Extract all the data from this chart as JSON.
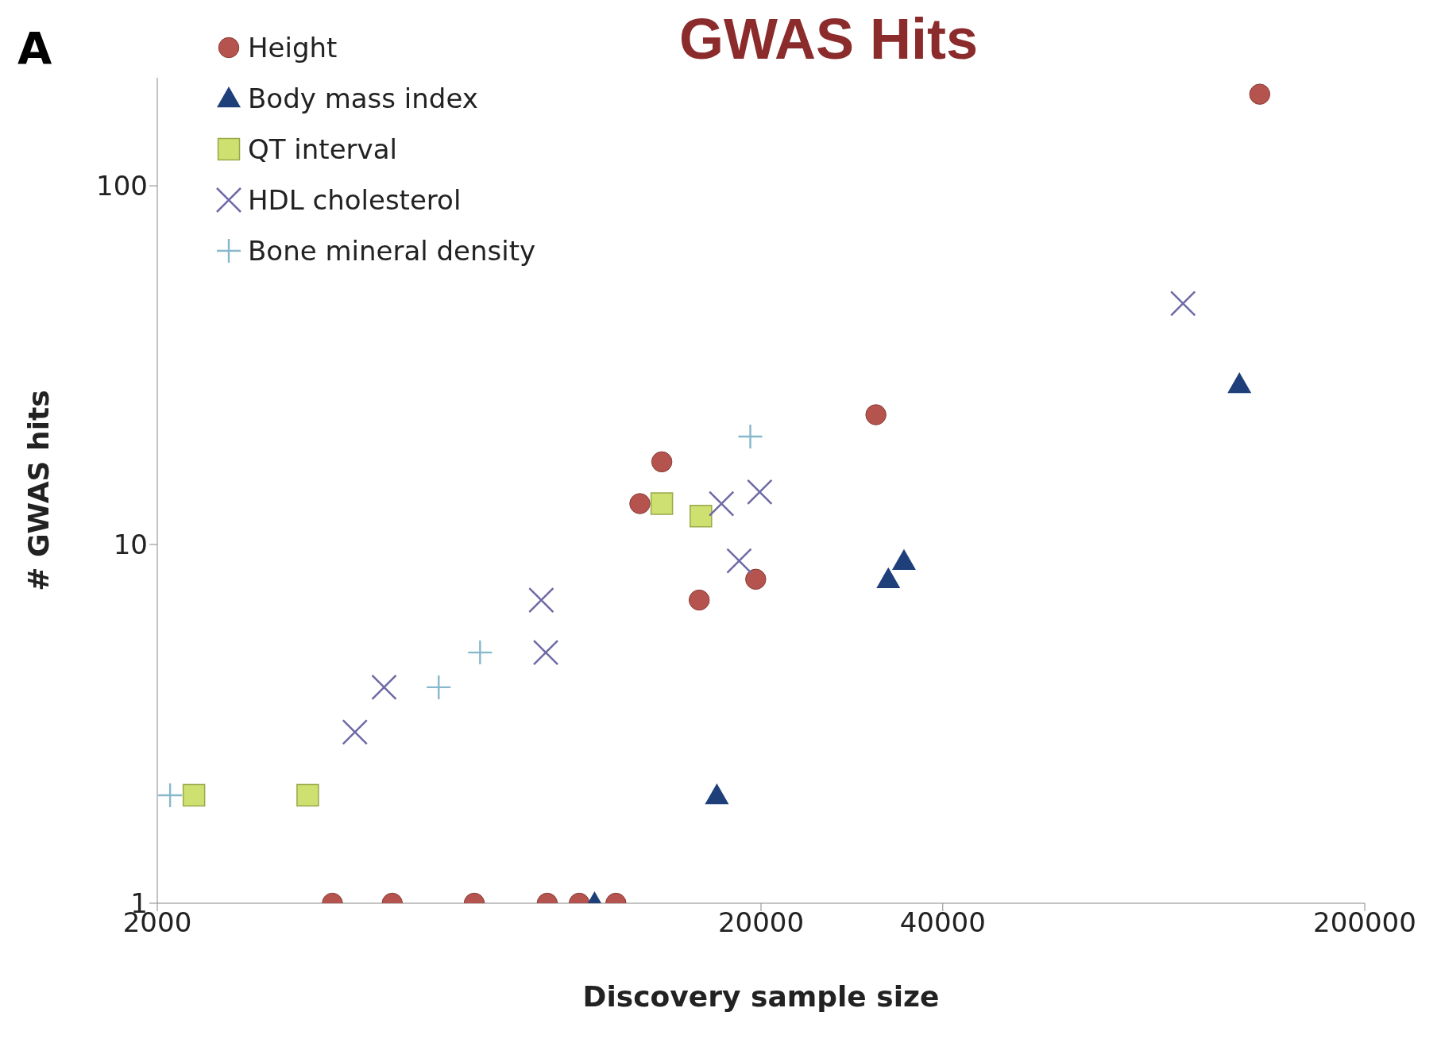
{
  "chart_data": {
    "type": "scatter",
    "title": "GWAS Hits",
    "xlabel": "Discovery sample size",
    "ylabel": "# GWAS hits",
    "annotations": [
      "A"
    ],
    "log": "xy",
    "grid": false,
    "legend": "top left",
    "xlim": [
      2000,
      200000
    ],
    "xticks": [
      2000,
      20000,
      40000,
      200000
    ],
    "ylim": [
      1,
      200
    ],
    "yticks": [
      1,
      10,
      100
    ],
    "series": [
      {
        "name": "Height",
        "color": "#b5544e",
        "marker": "circle",
        "x": [
          3900,
          4900,
          6700,
          8850,
          10000,
          11500,
          12600,
          13700,
          15800,
          19600,
          31000,
          134000
        ],
        "values": [
          1,
          1,
          1,
          1,
          1,
          1,
          13,
          17,
          7,
          8,
          23,
          180
        ]
      },
      {
        "name": "Body mass index",
        "color": "#1f3f7a",
        "marker": "triangle",
        "x": [
          10600,
          16900,
          32500,
          34500,
          124000
        ],
        "values": [
          1,
          2,
          8,
          9,
          28
        ]
      },
      {
        "name": "QT interval",
        "color": "#cde070",
        "marker": "square",
        "x": [
          2300,
          3550,
          13700,
          15900
        ],
        "values": [
          2,
          2,
          13,
          12
        ]
      },
      {
        "name": "HDL cholesterol",
        "color": "#6e6aa6",
        "marker": "cross",
        "x": [
          4250,
          4750,
          8650,
          8800,
          17200,
          18400,
          19900,
          100000
        ],
        "values": [
          3,
          4,
          7,
          5,
          13,
          9,
          14,
          47
        ]
      },
      {
        "name": "Bone mineral density",
        "color": "#86b8cc",
        "marker": "plus",
        "x": [
          2100,
          5850,
          6850,
          19200
        ],
        "values": [
          2,
          4,
          5,
          20
        ]
      }
    ]
  }
}
